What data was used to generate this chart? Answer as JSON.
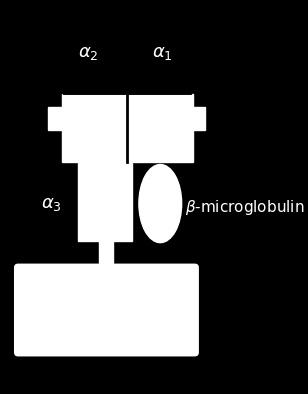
{
  "bg_color": "#000000",
  "fg_color": "#ffffff",
  "figsize": [
    3.08,
    3.94
  ],
  "dpi": 100,
  "labels": {
    "alpha1": "$\\alpha_1$",
    "alpha2": "$\\alpha_2$",
    "alpha3": "$\\alpha_3$",
    "beta": "$\\beta$-microglobulin"
  },
  "label_fontsize": 13,
  "beta_fontsize": 11
}
